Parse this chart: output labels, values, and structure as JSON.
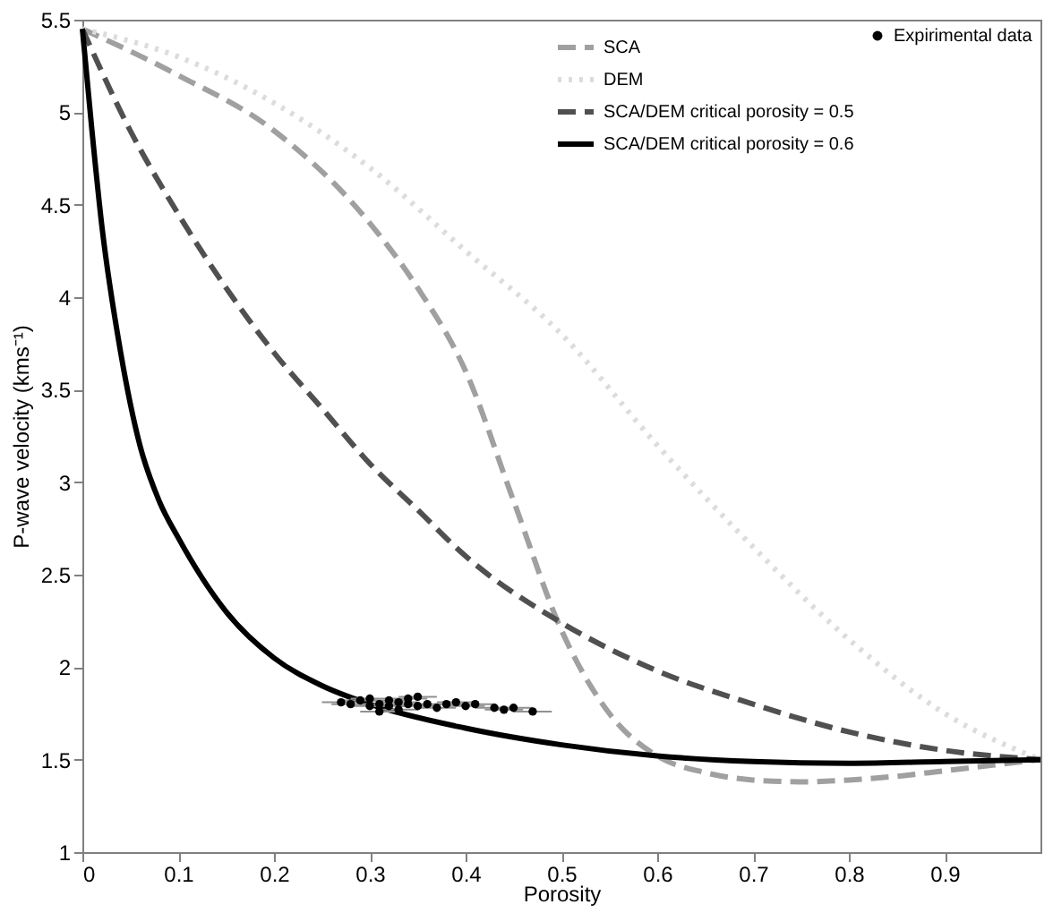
{
  "chart_data": {
    "type": "line",
    "xlabel": "Porosity",
    "ylabel": "P-wave velocity (kms⁻¹)",
    "xlim": [
      0,
      1
    ],
    "ylim": [
      1,
      5.5
    ],
    "xticks": [
      0,
      0.1,
      0.2,
      0.3,
      0.4,
      0.5,
      0.6,
      0.7,
      0.8,
      0.9
    ],
    "yticks": [
      1,
      1.5,
      2,
      2.5,
      3,
      3.5,
      4,
      4.5,
      5,
      5.5
    ],
    "grid": false,
    "legend": "top right",
    "marker": "none",
    "series": [
      {
        "name": "SCA",
        "color": "#a0a0a0",
        "line_style": "dashed",
        "x": [
          0,
          0.1,
          0.2,
          0.3,
          0.35,
          0.4,
          0.45,
          0.5,
          0.55,
          0.6,
          0.65,
          0.7,
          0.75,
          0.8,
          0.85,
          0.9,
          0.95,
          1.0
        ],
        "values": [
          5.45,
          5.2,
          4.9,
          4.4,
          4.05,
          3.6,
          2.9,
          2.2,
          1.75,
          1.52,
          1.43,
          1.39,
          1.38,
          1.39,
          1.41,
          1.44,
          1.47,
          1.5
        ]
      },
      {
        "name": "DEM",
        "color": "#dcdcdc",
        "line_style": "dotted",
        "x": [
          0,
          0.1,
          0.2,
          0.3,
          0.4,
          0.5,
          0.6,
          0.7,
          0.8,
          0.9,
          1.0
        ],
        "values": [
          5.45,
          5.3,
          5.05,
          4.7,
          4.25,
          3.8,
          3.2,
          2.65,
          2.15,
          1.75,
          1.5
        ]
      },
      {
        "name": "SCA/DEM critical porosity = 0.5",
        "color": "#505050",
        "line_style": "dashed",
        "x": [
          0,
          0.05,
          0.1,
          0.15,
          0.2,
          0.25,
          0.3,
          0.35,
          0.4,
          0.5,
          0.6,
          0.7,
          0.8,
          0.9,
          1.0
        ],
        "values": [
          5.45,
          4.9,
          4.45,
          4.05,
          3.7,
          3.4,
          3.1,
          2.85,
          2.6,
          2.24,
          1.98,
          1.8,
          1.65,
          1.55,
          1.5
        ]
      },
      {
        "name": "SCA/DEM critical porosity = 0.6",
        "color": "#000000",
        "line_style": "solid",
        "x": [
          0,
          0.01,
          0.02,
          0.04,
          0.06,
          0.08,
          0.1,
          0.15,
          0.2,
          0.25,
          0.3,
          0.4,
          0.5,
          0.6,
          0.7,
          0.8,
          0.9,
          1.0
        ],
        "values": [
          5.45,
          4.9,
          4.4,
          3.7,
          3.2,
          2.9,
          2.7,
          2.3,
          2.05,
          1.9,
          1.8,
          1.67,
          1.58,
          1.52,
          1.49,
          1.48,
          1.49,
          1.5
        ]
      },
      {
        "name": "Expirimental data",
        "type": "scatter",
        "marker": "circle",
        "color": "#000000",
        "x": [
          0.27,
          0.28,
          0.29,
          0.3,
          0.3,
          0.31,
          0.31,
          0.32,
          0.32,
          0.33,
          0.33,
          0.34,
          0.34,
          0.35,
          0.35,
          0.36,
          0.37,
          0.38,
          0.39,
          0.4,
          0.41,
          0.43,
          0.44,
          0.45,
          0.47
        ],
        "values": [
          1.81,
          1.8,
          1.82,
          1.79,
          1.83,
          1.8,
          1.76,
          1.82,
          1.79,
          1.81,
          1.77,
          1.8,
          1.83,
          1.79,
          1.84,
          1.8,
          1.78,
          1.8,
          1.81,
          1.79,
          1.8,
          1.78,
          1.77,
          1.78,
          1.76
        ],
        "xerrors": [
          0.02,
          0.02,
          0.02,
          0.02,
          0.02,
          0.02,
          0.02,
          0.02,
          0.02,
          0.02,
          0.02,
          0.02,
          0.02,
          0.02,
          0.02,
          0.02,
          0.02,
          0.02,
          0.02,
          0.02,
          0.02,
          0.02,
          0.02,
          0.02,
          0.02
        ]
      }
    ]
  }
}
